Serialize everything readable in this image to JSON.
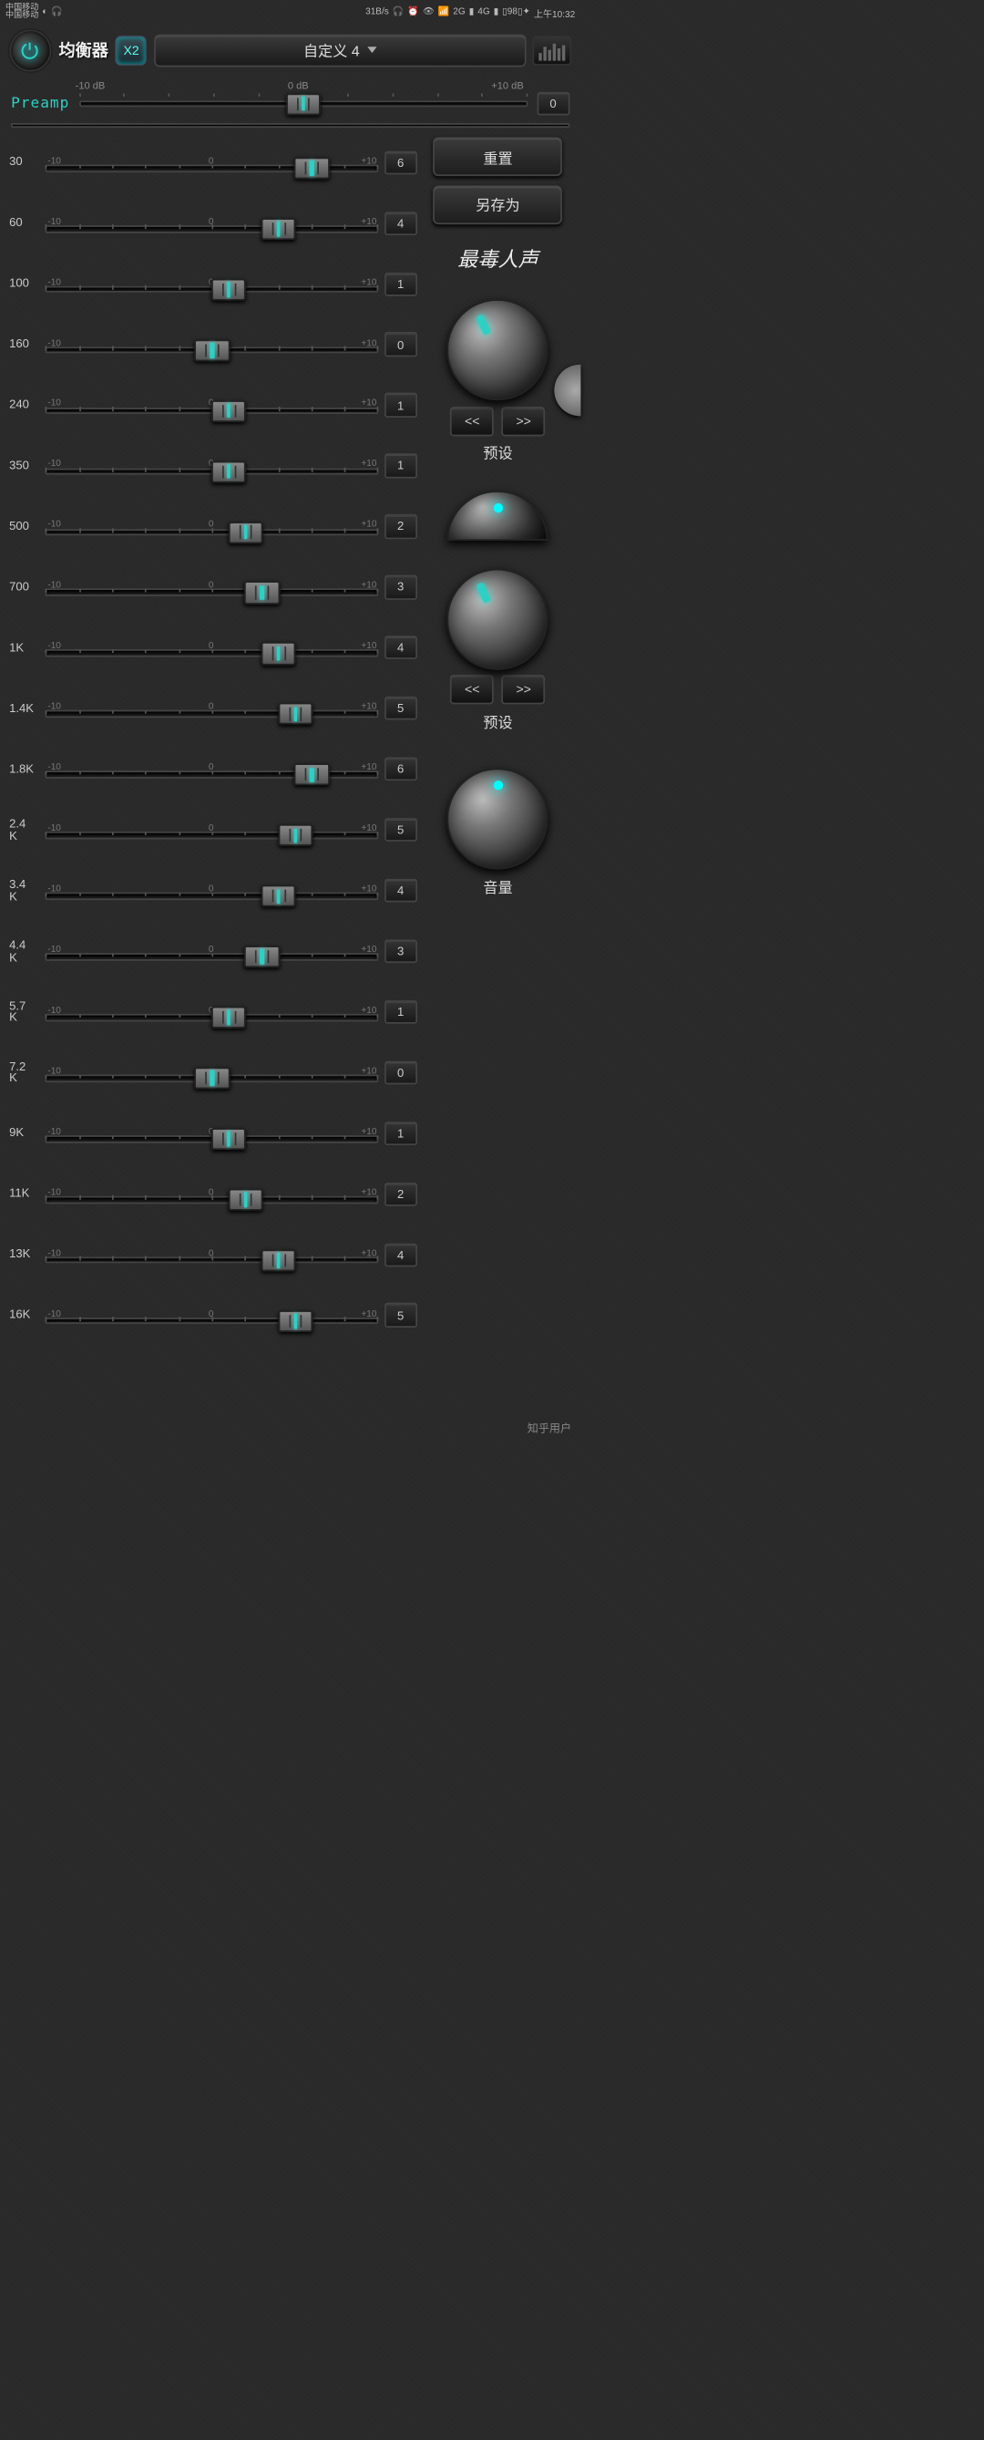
{
  "status": {
    "carrier": "中国移动",
    "speed": "31B/s",
    "battery": "98",
    "time": "上午10:32",
    "net1": "2G",
    "net2": "4G"
  },
  "header": {
    "title": "均衡器",
    "badge": "X2",
    "preset_selected": "自定义 4"
  },
  "preamp": {
    "label": "Preamp",
    "scale_low": "-10 dB",
    "scale_mid": "0 dB",
    "scale_high": "+10 dB",
    "value": 0,
    "value_text": "0",
    "min": -10,
    "max": 10
  },
  "band_scale": {
    "low": "-10",
    "mid": "0",
    "high": "+10"
  },
  "bands": [
    {
      "freq": "30",
      "value": 6,
      "text": "6"
    },
    {
      "freq": "60",
      "value": 4,
      "text": "4"
    },
    {
      "freq": "100",
      "value": 1,
      "text": "1"
    },
    {
      "freq": "160",
      "value": 0,
      "text": "0"
    },
    {
      "freq": "240",
      "value": 1,
      "text": "1"
    },
    {
      "freq": "350",
      "value": 1,
      "text": "1"
    },
    {
      "freq": "500",
      "value": 2,
      "text": "2"
    },
    {
      "freq": "700",
      "value": 3,
      "text": "3"
    },
    {
      "freq": "1K",
      "value": 4,
      "text": "4"
    },
    {
      "freq": "1.4K",
      "value": 5,
      "text": "5"
    },
    {
      "freq": "1.8K",
      "value": 6,
      "text": "6"
    },
    {
      "freq": "2.4K",
      "value": 5,
      "text": "5"
    },
    {
      "freq": "3.4K",
      "value": 4,
      "text": "4"
    },
    {
      "freq": "4.4K",
      "value": 3,
      "text": "3"
    },
    {
      "freq": "5.7K",
      "value": 1,
      "text": "1"
    },
    {
      "freq": "7.2K",
      "value": 0,
      "text": "0"
    },
    {
      "freq": "9K",
      "value": 1,
      "text": "1"
    },
    {
      "freq": "11K",
      "value": 2,
      "text": "2"
    },
    {
      "freq": "13K",
      "value": 4,
      "text": "4"
    },
    {
      "freq": "16K",
      "value": 5,
      "text": "5"
    }
  ],
  "side": {
    "reset": "重置",
    "save_as": "另存为",
    "tag_text": "最毒人声",
    "preset_label": "预设",
    "volume_label": "音量",
    "prev": "<<",
    "next": ">>"
  },
  "colors": {
    "accent": "#2ed0c4",
    "bg": "#2a2a2a",
    "rail": "#0a0a0a",
    "text": "#cccccc"
  },
  "watermark": "知乎用户"
}
